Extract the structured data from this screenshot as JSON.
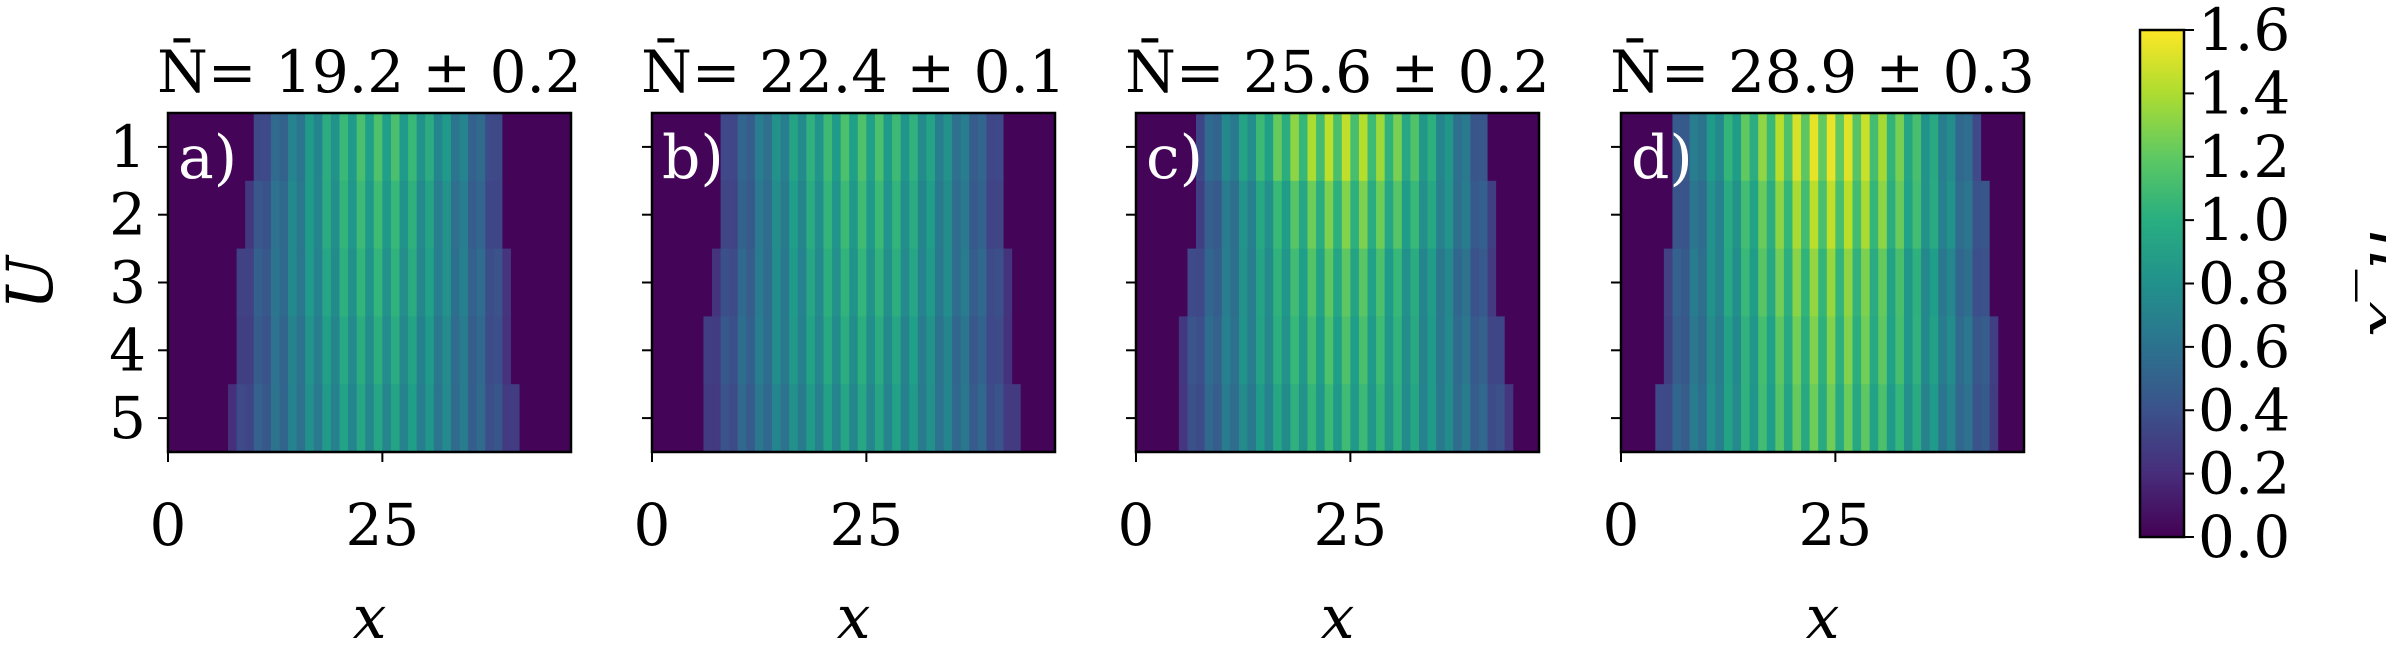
{
  "chart_data": {
    "type": "heatmap",
    "colormap": "viridis",
    "y_axis": {
      "label": "U",
      "ticks": [
        1,
        2,
        3,
        4,
        5
      ]
    },
    "x_axis": {
      "label": "x",
      "ticks": [
        0,
        25
      ],
      "range": [
        0,
        47
      ]
    },
    "colorbar": {
      "label": "n_x",
      "range": [
        0.0,
        1.6
      ],
      "ticks": [
        "0.0",
        "0.2",
        "0.4",
        "0.6",
        "0.8",
        "1.0",
        "1.2",
        "1.4",
        "1.6"
      ]
    },
    "panels": [
      {
        "title": "N̄= 19.2 ± 0.2",
        "tag": "a)",
        "n_mean": 19.2,
        "n_err": 0.2,
        "rows": [
          {
            "U": 1,
            "sites": [
              10,
              38
            ],
            "peak": 1.15
          },
          {
            "U": 2,
            "sites": [
              9,
              38
            ],
            "peak": 1.1
          },
          {
            "U": 3,
            "sites": [
              8,
              39
            ],
            "peak": 1.05
          },
          {
            "U": 4,
            "sites": [
              8,
              39
            ],
            "peak": 1.0
          },
          {
            "U": 5,
            "sites": [
              7,
              40
            ],
            "peak": 0.95
          }
        ]
      },
      {
        "title": "N̄= 22.4 ± 0.1",
        "tag": "b)",
        "n_mean": 22.4,
        "n_err": 0.1,
        "rows": [
          {
            "U": 1,
            "sites": [
              8,
              40
            ],
            "peak": 1.15
          },
          {
            "U": 2,
            "sites": [
              8,
              40
            ],
            "peak": 1.1
          },
          {
            "U": 3,
            "sites": [
              7,
              41
            ],
            "peak": 1.05
          },
          {
            "U": 4,
            "sites": [
              6,
              41
            ],
            "peak": 1.0
          },
          {
            "U": 5,
            "sites": [
              6,
              42
            ],
            "peak": 0.95
          }
        ]
      },
      {
        "title": "N̄= 25.6 ± 0.2",
        "tag": "c)",
        "n_mean": 25.6,
        "n_err": 0.2,
        "rows": [
          {
            "U": 1,
            "sites": [
              7,
              40
            ],
            "peak": 1.45
          },
          {
            "U": 2,
            "sites": [
              7,
              41
            ],
            "peak": 1.3
          },
          {
            "U": 3,
            "sites": [
              6,
              41
            ],
            "peak": 1.2
          },
          {
            "U": 4,
            "sites": [
              5,
              42
            ],
            "peak": 1.15
          },
          {
            "U": 5,
            "sites": [
              5,
              43
            ],
            "peak": 1.1
          }
        ]
      },
      {
        "title": "N̄= 28.9 ± 0.3",
        "tag": "d)",
        "n_mean": 28.9,
        "n_err": 0.3,
        "rows": [
          {
            "U": 1,
            "sites": [
              6,
              41
            ],
            "peak": 1.55
          },
          {
            "U": 2,
            "sites": [
              6,
              42
            ],
            "peak": 1.45
          },
          {
            "U": 3,
            "sites": [
              5,
              42
            ],
            "peak": 1.35
          },
          {
            "U": 4,
            "sites": [
              5,
              43
            ],
            "peak": 1.3
          },
          {
            "U": 5,
            "sites": [
              4,
              43
            ],
            "peak": 1.25
          }
        ]
      }
    ]
  }
}
